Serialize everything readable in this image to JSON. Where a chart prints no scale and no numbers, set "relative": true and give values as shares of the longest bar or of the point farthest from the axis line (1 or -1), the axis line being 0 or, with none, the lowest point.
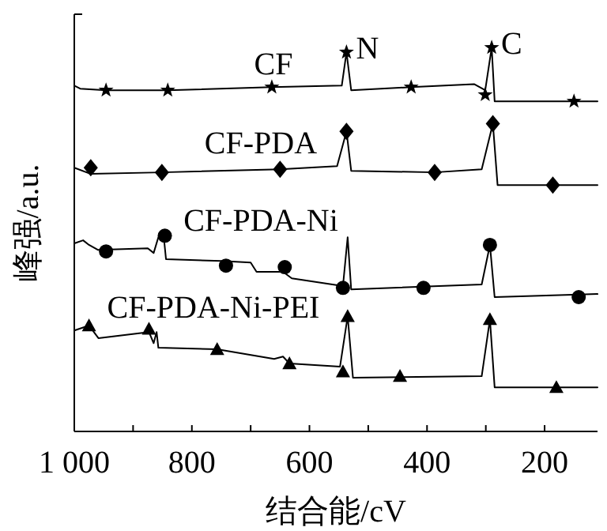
{
  "chart_data": {
    "type": "line",
    "relative": true,
    "xlabel": "结合能/cV",
    "ylabel": "峰强/a.u.",
    "xlim": [
      1000,
      110
    ],
    "xticks": [
      {
        "value": 1000,
        "label": "1 000"
      },
      {
        "value": 900,
        "label": null
      },
      800,
      {
        "value": 700,
        "label": null
      },
      600,
      {
        "value": 500,
        "label": null
      },
      400,
      {
        "value": 300,
        "label": null
      },
      200
    ],
    "line_style": "solid",
    "annotations": [
      {
        "text": "N",
        "x": 537,
        "y": 0.988
      },
      {
        "text": "C",
        "x": 290,
        "y": 1
      }
    ],
    "series": [
      {
        "name": "CF",
        "type": "line",
        "marker": "none",
        "color": "#000000",
        "x": [
          1000,
          990,
          946,
          841,
          664,
          545,
          537,
          529,
          427,
          320,
          301,
          290,
          285,
          110
        ],
        "values": [
          0.901,
          0.893,
          0.889,
          0.889,
          0.897,
          0.901,
          0.988,
          0.889,
          0.897,
          0.905,
          0.889,
          1,
          0.86,
          0.86
        ]
      },
      {
        "type": "scatter",
        "marker": "star",
        "color": "#000000",
        "x": [
          946,
          841,
          664,
          537,
          427,
          301,
          290,
          150
        ],
        "values": [
          0.889,
          0.889,
          0.897,
          0.988,
          0.897,
          0.877,
          1,
          0.86
        ]
      },
      {
        "name": "CF-PDA",
        "type": "line",
        "marker": "none",
        "color": "#000000",
        "x": [
          1000,
          972,
          851,
          650,
          553,
          537,
          529,
          387,
          307,
          288,
          280,
          110
        ],
        "values": [
          0.687,
          0.671,
          0.675,
          0.683,
          0.691,
          0.782,
          0.679,
          0.675,
          0.683,
          0.802,
          0.642,
          0.642
        ]
      },
      {
        "type": "scatter",
        "marker": "diamond",
        "color": "#000000",
        "x": [
          972,
          851,
          650,
          537,
          387,
          288,
          186
        ],
        "values": [
          0.687,
          0.675,
          0.683,
          0.782,
          0.675,
          0.802,
          0.642
        ]
      },
      {
        "name": "CF-PDA-Ni",
        "type": "line",
        "marker": "none",
        "color": "#000000",
        "x": [
          1000,
          985,
          975,
          960,
          875,
          865,
          857,
          848,
          844,
          750,
          700,
          690,
          645,
          630,
          543,
          535,
          529,
          307,
          293,
          285,
          110
        ],
        "values": [
          0.49,
          0.498,
          0.486,
          0.473,
          0.477,
          0.465,
          0.506,
          0.51,
          0.449,
          0.444,
          0.44,
          0.416,
          0.416,
          0.399,
          0.379,
          0.506,
          0.37,
          0.383,
          0.486,
          0.35,
          0.358
        ]
      },
      {
        "type": "scatter",
        "marker": "circle",
        "color": "#000000",
        "x": [
          946,
          846,
          742,
          642,
          543,
          406,
          293,
          142
        ],
        "values": [
          0.469,
          0.51,
          0.432,
          0.428,
          0.374,
          0.374,
          0.486,
          0.35
        ]
      },
      {
        "name": "CF-PDA-Ni-PEI",
        "type": "line",
        "marker": "none",
        "color": "#000000",
        "x": [
          1000,
          975,
          959,
          873,
          865,
          860,
          857,
          757,
          660,
          645,
          634,
          548,
          535,
          526,
          307,
          293,
          285,
          110
        ],
        "values": [
          0.263,
          0.276,
          0.243,
          0.259,
          0.23,
          0.259,
          0.218,
          0.214,
          0.189,
          0.195,
          0.177,
          0.169,
          0.3,
          0.14,
          0.144,
          0.292,
          0.115,
          0.115
        ]
      },
      {
        "type": "scatter",
        "marker": "triangle",
        "color": "#000000",
        "x": [
          975,
          873,
          757,
          634,
          543,
          535,
          446,
          293,
          180
        ],
        "values": [
          0.276,
          0.267,
          0.214,
          0.177,
          0.156,
          0.3,
          0.144,
          0.292,
          0.115
        ]
      }
    ]
  }
}
